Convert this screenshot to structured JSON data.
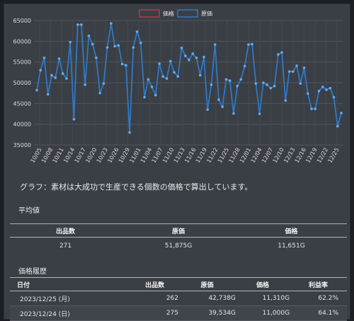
{
  "chart_data": {
    "type": "line",
    "legend": [
      "価格",
      "原価"
    ],
    "legend_colors": [
      "#b33a4b",
      "#2f78c4"
    ],
    "ylim": [
      35000,
      65000
    ],
    "yticks": [
      35000,
      40000,
      45000,
      50000,
      55000,
      60000,
      65000
    ],
    "xtick_labels": [
      "10/05",
      "10/08",
      "10/11",
      "10/14",
      "10/17",
      "10/20",
      "10/23",
      "10/26",
      "10/29",
      "11/01",
      "11/04",
      "11/07",
      "11/10",
      "11/13",
      "11/16",
      "11/19",
      "11/22",
      "11/25",
      "11/28",
      "12/01",
      "12/04",
      "12/07",
      "12/10",
      "12/13",
      "12/16",
      "12/19",
      "12/22",
      "12/25"
    ],
    "series": [
      {
        "name": "原価",
        "color": "#2f78c4",
        "values": [
          48200,
          53000,
          56000,
          47200,
          51800,
          51200,
          55800,
          52200,
          51000,
          59800,
          41200,
          64000,
          64000,
          49500,
          61300,
          59300,
          56000,
          47500,
          49800,
          58500,
          64300,
          58800,
          59000,
          54500,
          54200,
          38000,
          58500,
          62300,
          59600,
          46500,
          50800,
          49000,
          47000,
          54600,
          51500,
          51000,
          55200,
          52500,
          51500,
          58400,
          56500,
          55500,
          57000,
          56000,
          51800,
          56200,
          43500,
          49500,
          59200,
          45900,
          44200,
          50800,
          50500,
          42600,
          49200,
          50800,
          54000,
          59200,
          59300,
          49800,
          42500,
          50000,
          49500,
          48700,
          49200,
          56800,
          57300,
          45700,
          52700,
          52700,
          54100,
          49800,
          53600,
          47400,
          43700,
          43700,
          48000,
          49000,
          48300,
          48700,
          46500,
          39500,
          42700
        ]
      }
    ]
  },
  "note": "グラフ：素材は大成功で生産できる個数の価格で算出しています。",
  "average": {
    "title": "平均値",
    "headers": [
      "出品数",
      "原価",
      "価格"
    ],
    "row": [
      "271",
      "51,875G",
      "11,651G"
    ]
  },
  "history": {
    "title": "価格履歴",
    "headers": [
      "日付",
      "出品数",
      "原価",
      "価格",
      "利益率"
    ],
    "rows": [
      [
        "2023/12/25 (月)",
        "262",
        "42,738G",
        "11,310G",
        "62.2%"
      ],
      [
        "2023/12/24 (日)",
        "275",
        "39,534G",
        "11,000G",
        "64.1%"
      ]
    ]
  }
}
